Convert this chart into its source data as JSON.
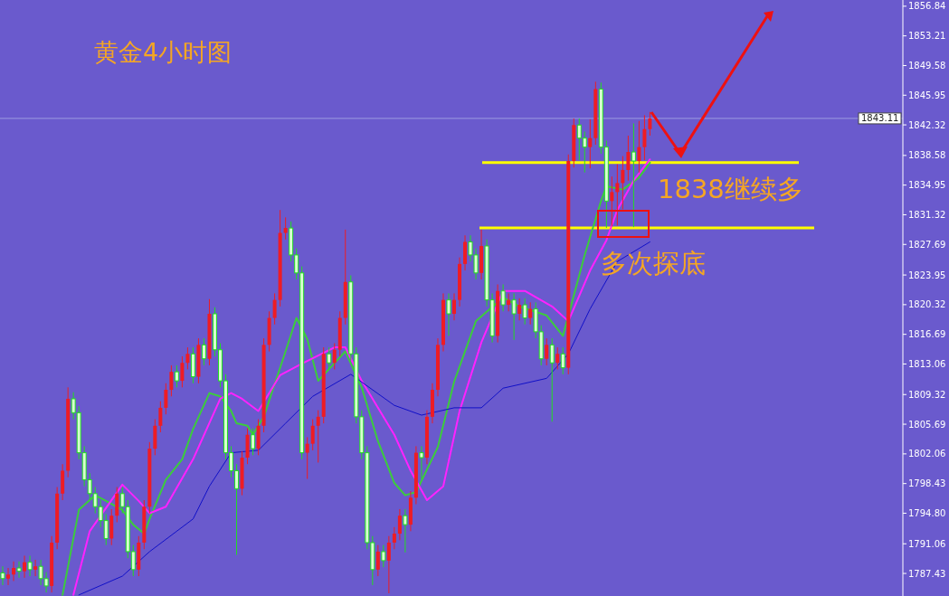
{
  "chart_data": {
    "type": "candlestick",
    "title": "黄金4小时图",
    "annotations": [
      "1838继续多",
      "多次探底"
    ],
    "categories": [
      null,
      null,
      null,
      null,
      null,
      null,
      null,
      null,
      null,
      null,
      null,
      null,
      null,
      null,
      null,
      null,
      null,
      null,
      null,
      null,
      null,
      null,
      null,
      null,
      null,
      null,
      null,
      null,
      null,
      null,
      null,
      null,
      null,
      null,
      null,
      null,
      null,
      null,
      null,
      null,
      null,
      null,
      null,
      null,
      null,
      null,
      null,
      null,
      null,
      null,
      null,
      null,
      null,
      null,
      null,
      null,
      null,
      null,
      null,
      null,
      null,
      null,
      null,
      null,
      null,
      null,
      null,
      null,
      null,
      null,
      null,
      null,
      null,
      null,
      null,
      null,
      null,
      null,
      null,
      null,
      null,
      null,
      null,
      null,
      null,
      null,
      null,
      null,
      null,
      null,
      null,
      null,
      null,
      null,
      null,
      null,
      null,
      null,
      null,
      null,
      null,
      null,
      null,
      null,
      null,
      null,
      null,
      null,
      null,
      null,
      null,
      null,
      null,
      null,
      null,
      null,
      null,
      null,
      null,
      null,
      null,
      null,
      null,
      null,
      null,
      null,
      null,
      null,
      null,
      null,
      null,
      null,
      null,
      null,
      null,
      null,
      null,
      null,
      null,
      null,
      null,
      null,
      null,
      null,
      null,
      null,
      null,
      null,
      null,
      null,
      null,
      null,
      null,
      null,
      null,
      null,
      null,
      null,
      null,
      null,
      null,
      null,
      null,
      null,
      null,
      null
    ],
    "ohlc": [
      [
        1787.5,
        1788.3,
        1786.0,
        1786.8
      ],
      [
        1786.8,
        1788.1,
        1786.0,
        1787.3
      ],
      [
        1787.3,
        1788.9,
        1786.5,
        1788.1
      ],
      [
        1788.1,
        1788.9,
        1786.9,
        1787.7
      ],
      [
        1787.7,
        1789.6,
        1786.9,
        1788.8
      ],
      [
        1788.8,
        1789.6,
        1787.1,
        1787.9
      ],
      [
        1787.9,
        1789.1,
        1787.1,
        1788.3
      ],
      [
        1788.3,
        1789.1,
        1786.0,
        1786.8
      ],
      [
        1786.8,
        1787.6,
        1785.1,
        1785.9
      ],
      [
        1785.9,
        1792.0,
        1785.1,
        1791.2
      ],
      [
        1791.2,
        1798.0,
        1790.4,
        1797.2
      ],
      [
        1797.2,
        1800.8,
        1796.4,
        1800.0
      ],
      [
        1800.0,
        1810.2,
        1799.2,
        1808.8
      ],
      [
        1808.8,
        1809.6,
        1806.3,
        1807.1
      ],
      [
        1807.1,
        1807.9,
        1801.4,
        1802.2
      ],
      [
        1802.2,
        1803.0,
        1798.1,
        1798.9
      ],
      [
        1798.9,
        1799.7,
        1796.4,
        1797.2
      ],
      [
        1797.2,
        1798.0,
        1794.8,
        1795.6
      ],
      [
        1795.6,
        1796.4,
        1793.1,
        1793.9
      ],
      [
        1793.9,
        1794.7,
        1790.9,
        1791.7
      ],
      [
        1791.7,
        1795.3,
        1790.9,
        1794.5
      ],
      [
        1794.5,
        1798.0,
        1793.7,
        1797.2
      ],
      [
        1797.2,
        1798.0,
        1794.8,
        1795.6
      ],
      [
        1795.6,
        1796.4,
        1789.3,
        1790.1
      ],
      [
        1790.1,
        1790.9,
        1787.1,
        1787.9
      ],
      [
        1787.9,
        1792.0,
        1787.1,
        1791.2
      ],
      [
        1791.2,
        1796.4,
        1790.4,
        1795.6
      ],
      [
        1795.6,
        1803.5,
        1794.8,
        1802.7
      ],
      [
        1802.7,
        1806.3,
        1801.9,
        1805.5
      ],
      [
        1805.5,
        1808.5,
        1804.7,
        1807.7
      ],
      [
        1807.7,
        1810.7,
        1806.9,
        1809.9
      ],
      [
        1809.9,
        1812.9,
        1809.1,
        1812.1
      ],
      [
        1812.1,
        1812.9,
        1810.2,
        1811.0
      ],
      [
        1811.0,
        1814.0,
        1810.2,
        1813.2
      ],
      [
        1813.2,
        1815.1,
        1812.4,
        1814.3
      ],
      [
        1814.3,
        1815.1,
        1810.7,
        1811.5
      ],
      [
        1811.5,
        1816.2,
        1810.7,
        1815.4
      ],
      [
        1815.4,
        1816.2,
        1812.9,
        1813.7
      ],
      [
        1813.7,
        1821.0,
        1812.9,
        1819.2
      ],
      [
        1819.2,
        1820.0,
        1814.0,
        1814.8
      ],
      [
        1814.8,
        1815.6,
        1810.2,
        1811.0
      ],
      [
        1811.0,
        1811.8,
        1801.4,
        1802.2
      ],
      [
        1802.2,
        1803.0,
        1799.2,
        1800.0
      ],
      [
        1800.0,
        1800.8,
        1789.7,
        1797.8
      ],
      [
        1797.8,
        1802.4,
        1797.0,
        1801.6
      ],
      [
        1801.6,
        1805.2,
        1800.8,
        1804.4
      ],
      [
        1804.4,
        1805.2,
        1801.9,
        1802.7
      ],
      [
        1802.7,
        1806.3,
        1801.9,
        1805.5
      ],
      [
        1805.5,
        1816.2,
        1804.7,
        1815.4
      ],
      [
        1815.4,
        1819.5,
        1814.6,
        1818.7
      ],
      [
        1818.7,
        1821.7,
        1817.9,
        1820.9
      ],
      [
        1820.9,
        1831.9,
        1820.1,
        1829.1
      ],
      [
        1829.1,
        1831.0,
        1828.3,
        1829.7
      ],
      [
        1829.7,
        1830.5,
        1825.6,
        1826.4
      ],
      [
        1826.4,
        1827.2,
        1823.4,
        1824.2
      ],
      [
        1824.2,
        1825.0,
        1801.4,
        1802.2
      ],
      [
        1802.2,
        1804.1,
        1799.0,
        1803.3
      ],
      [
        1803.3,
        1806.3,
        1802.5,
        1805.5
      ],
      [
        1805.5,
        1807.4,
        1801.0,
        1806.6
      ],
      [
        1806.6,
        1815.1,
        1805.8,
        1814.3
      ],
      [
        1814.3,
        1815.1,
        1812.4,
        1813.2
      ],
      [
        1813.2,
        1815.6,
        1812.4,
        1814.8
      ],
      [
        1814.8,
        1819.5,
        1814.0,
        1818.7
      ],
      [
        1818.7,
        1829.5,
        1817.9,
        1823.1
      ],
      [
        1823.1,
        1823.9,
        1813.5,
        1814.3
      ],
      [
        1814.3,
        1815.1,
        1805.8,
        1806.6
      ],
      [
        1806.6,
        1807.4,
        1801.4,
        1802.2
      ],
      [
        1802.2,
        1803.0,
        1790.4,
        1791.2
      ],
      [
        1791.2,
        1792.0,
        1786.0,
        1787.9
      ],
      [
        1787.9,
        1790.9,
        1787.1,
        1790.1
      ],
      [
        1790.1,
        1790.9,
        1788.2,
        1789.0
      ],
      [
        1789.0,
        1792.0,
        1785.0,
        1791.2
      ],
      [
        1791.2,
        1793.1,
        1790.4,
        1792.3
      ],
      [
        1792.3,
        1795.3,
        1791.5,
        1794.5
      ],
      [
        1794.5,
        1795.3,
        1790.0,
        1793.4
      ],
      [
        1793.4,
        1797.5,
        1792.6,
        1796.7
      ],
      [
        1796.7,
        1803.0,
        1795.9,
        1802.2
      ],
      [
        1802.2,
        1803.0,
        1799.0,
        1801.6
      ],
      [
        1801.6,
        1807.4,
        1800.8,
        1806.6
      ],
      [
        1806.6,
        1810.7,
        1805.8,
        1809.9
      ],
      [
        1809.9,
        1816.2,
        1809.1,
        1815.4
      ],
      [
        1815.4,
        1821.7,
        1814.6,
        1820.9
      ],
      [
        1820.9,
        1821.7,
        1816.5,
        1819.2
      ],
      [
        1819.2,
        1821.7,
        1818.4,
        1820.9
      ],
      [
        1820.9,
        1826.1,
        1820.1,
        1825.3
      ],
      [
        1825.3,
        1828.8,
        1824.5,
        1828.0
      ],
      [
        1828.0,
        1828.8,
        1825.6,
        1826.4
      ],
      [
        1826.4,
        1827.2,
        1823.4,
        1824.2
      ],
      [
        1824.2,
        1829.5,
        1823.4,
        1827.5
      ],
      [
        1827.5,
        1828.3,
        1820.1,
        1820.9
      ],
      [
        1820.9,
        1821.7,
        1815.7,
        1816.5
      ],
      [
        1816.5,
        1822.8,
        1815.7,
        1822.0
      ],
      [
        1822.0,
        1822.8,
        1819.5,
        1820.3
      ],
      [
        1820.3,
        1821.7,
        1819.5,
        1820.9
      ],
      [
        1820.9,
        1821.7,
        1816.0,
        1819.2
      ],
      [
        1819.2,
        1821.1,
        1818.4,
        1820.3
      ],
      [
        1820.3,
        1821.1,
        1817.9,
        1818.7
      ],
      [
        1818.7,
        1820.6,
        1817.9,
        1819.8
      ],
      [
        1819.8,
        1820.6,
        1816.2,
        1817.0
      ],
      [
        1817.0,
        1817.8,
        1812.9,
        1813.7
      ],
      [
        1813.7,
        1816.2,
        1812.9,
        1815.4
      ],
      [
        1815.4,
        1816.2,
        1806.0,
        1813.2
      ],
      [
        1813.2,
        1815.1,
        1812.4,
        1814.3
      ],
      [
        1814.3,
        1815.1,
        1811.8,
        1812.6
      ],
      [
        1812.6,
        1838.7,
        1811.8,
        1837.9
      ],
      [
        1837.9,
        1843.1,
        1837.1,
        1842.3
      ],
      [
        1842.3,
        1843.1,
        1838.0,
        1840.7
      ],
      [
        1840.7,
        1841.5,
        1836.5,
        1839.6
      ],
      [
        1839.6,
        1843.0,
        1837.0,
        1840.7
      ],
      [
        1840.7,
        1847.6,
        1839.9,
        1846.7
      ],
      [
        1846.7,
        1847.5,
        1838.8,
        1839.6
      ],
      [
        1839.6,
        1840.4,
        1829.7,
        1833.0
      ],
      [
        1833.0,
        1836.0,
        1829.9,
        1834.1
      ],
      [
        1834.1,
        1837.5,
        1830.0,
        1835.2
      ],
      [
        1835.2,
        1838.5,
        1832.0,
        1836.8
      ],
      [
        1836.8,
        1841.0,
        1835.5,
        1839.0
      ],
      [
        1839.0,
        1842.5,
        1829.8,
        1837.9
      ],
      [
        1837.9,
        1842.8,
        1836.5,
        1839.6
      ],
      [
        1839.6,
        1843.5,
        1838.0,
        1841.8
      ],
      [
        1841.8,
        1843.9,
        1841.0,
        1843.1
      ],
      null,
      null,
      null,
      null,
      null,
      null,
      null,
      null,
      null,
      null,
      null,
      null,
      null,
      null,
      null,
      null,
      null,
      null,
      null,
      null,
      null,
      null,
      null,
      null,
      null,
      null,
      null,
      null,
      null,
      null,
      null,
      null,
      null,
      null,
      null,
      null,
      null,
      null,
      null,
      null,
      null,
      null,
      null,
      null,
      null,
      null
    ],
    "series": [
      {
        "type": "line",
        "color": "#3ccc3c",
        "values": [
          null,
          null,
          null,
          null,
          null,
          null,
          null,
          null,
          null,
          null,
          null,
          1784.8,
          null,
          null,
          1795.2,
          null,
          null,
          1797.0,
          null,
          1796.3,
          null,
          null,
          1795.2,
          null,
          1793.4,
          null,
          1792.3,
          1794.1,
          null,
          null,
          1798.9,
          null,
          null,
          1801.4,
          null,
          1805.1,
          null,
          null,
          1809.5,
          null,
          1809.1,
          null,
          1807.3,
          1805.8,
          null,
          1805.5,
          1804.4,
          null,
          1806.6,
          null,
          null,
          null,
          1814.6,
          null,
          1818.7,
          null,
          1816.1,
          null,
          1811.0,
          null,
          null,
          null,
          null,
          1814.6,
          null,
          null,
          1810.2,
          null,
          null,
          1803.6,
          null,
          null,
          1798.5,
          null,
          1797.0,
          null,
          1797.4,
          null,
          null,
          null,
          1802.9,
          null,
          null,
          1810.9,
          null,
          null,
          null,
          1818.3,
          null,
          null,
          null,
          null,
          1821.2,
          null,
          null,
          1820.1,
          null,
          null,
          null,
          null,
          1819.0,
          null,
          null,
          1816.5,
          null,
          null,
          null,
          1826.4,
          null,
          null,
          1833.0,
          1834.8,
          null,
          null,
          1834.4,
          null,
          null,
          1835.9,
          null,
          1837.7,
          null,
          null,
          null,
          null,
          null,
          null,
          null,
          null,
          null,
          null,
          null,
          null,
          null,
          null,
          null,
          null,
          null,
          null,
          null,
          null,
          null,
          null,
          null,
          null,
          null,
          null,
          null,
          null,
          null,
          null,
          null,
          null,
          null,
          null,
          null,
          null,
          null,
          null,
          null,
          null,
          null,
          null,
          null,
          null,
          null,
          null
        ]
      },
      {
        "type": "line",
        "color": "#ff22ff",
        "values": [
          null,
          null,
          null,
          null,
          null,
          null,
          null,
          null,
          null,
          null,
          null,
          null,
          null,
          1784.8,
          null,
          null,
          1792.6,
          null,
          null,
          null,
          null,
          null,
          1798.3,
          null,
          null,
          1796.3,
          null,
          1794.8,
          null,
          null,
          1795.6,
          null,
          null,
          null,
          null,
          1801.4,
          null,
          null,
          null,
          null,
          1808.8,
          null,
          1809.5,
          null,
          1808.8,
          null,
          null,
          1807.3,
          null,
          null,
          null,
          1811.7,
          null,
          null,
          null,
          1813.1,
          null,
          null,
          null,
          null,
          null,
          1815.1,
          null,
          1815.1,
          null,
          null,
          1811.0,
          null,
          null,
          null,
          null,
          null,
          1804.4,
          null,
          null,
          1800.0,
          null,
          null,
          1796.4,
          null,
          null,
          1798.1,
          null,
          null,
          1807.3,
          null,
          null,
          null,
          1815.7,
          null,
          null,
          null,
          1822.0,
          null,
          null,
          null,
          1822.0,
          null,
          null,
          null,
          null,
          1820.1,
          null,
          null,
          1818.3,
          null,
          null,
          null,
          1824.5,
          null,
          null,
          1828.2,
          null,
          1831.9,
          null,
          null,
          1835.5,
          null,
          null,
          1838.1,
          null,
          null,
          null,
          null,
          null,
          null,
          null,
          null,
          null,
          null,
          null,
          null,
          null,
          null,
          null,
          null,
          null,
          null,
          null,
          null,
          null,
          null,
          null,
          null,
          null,
          null,
          null,
          null,
          null,
          null,
          null,
          null,
          null,
          null,
          null,
          null,
          null,
          null,
          null,
          null,
          null,
          null,
          null,
          null,
          null,
          null
        ]
      },
      {
        "type": "line",
        "color": "#1010c8",
        "values": [
          null,
          null,
          null,
          null,
          null,
          null,
          null,
          null,
          null,
          null,
          null,
          null,
          null,
          null,
          1784.8,
          null,
          null,
          null,
          null,
          null,
          null,
          null,
          1787.1,
          null,
          null,
          null,
          null,
          1790.1,
          null,
          null,
          null,
          null,
          null,
          null,
          null,
          1794.1,
          null,
          null,
          1798.1,
          null,
          null,
          null,
          1802.2,
          null,
          null,
          null,
          null,
          1802.5,
          null,
          null,
          null,
          null,
          1805.8,
          null,
          null,
          null,
          null,
          1809.1,
          null,
          null,
          null,
          null,
          null,
          null,
          1811.8,
          null,
          null,
          null,
          null,
          null,
          null,
          null,
          1808.0,
          null,
          null,
          null,
          null,
          1806.8,
          null,
          null,
          null,
          null,
          null,
          1807.7,
          null,
          null,
          null,
          null,
          1807.7,
          null,
          null,
          null,
          1810.1,
          null,
          null,
          null,
          null,
          null,
          null,
          null,
          1811.3,
          null,
          null,
          null,
          1814.3,
          null,
          null,
          null,
          1819.8,
          null,
          null,
          null,
          null,
          1825.6,
          null,
          null,
          null,
          null,
          null,
          1828.0,
          null,
          null,
          null,
          null,
          null,
          null,
          null,
          null,
          null,
          null,
          null,
          null,
          null,
          null,
          null,
          null,
          null,
          null,
          null,
          null,
          null,
          null,
          null,
          null,
          null,
          null,
          null,
          null,
          null,
          null,
          null,
          null,
          null,
          null,
          null,
          null,
          null,
          null,
          null,
          null,
          null,
          null,
          null,
          null,
          null,
          null
        ]
      }
    ],
    "ylim": [
      1784.67,
      1857.6
    ],
    "yticks": [
      1856.84,
      1853.21,
      1849.58,
      1845.95,
      1842.32,
      1838.58,
      1834.95,
      1831.32,
      1827.69,
      1823.95,
      1820.32,
      1816.69,
      1813.06,
      1809.32,
      1805.69,
      1802.06,
      1798.43,
      {
        "value": 1794.8,
        "label": "1794.80"
      },
      1791.06,
      1787.43
    ],
    "ref_lines": [
      {
        "axis": "y",
        "value": 1843.11,
        "label": "1843.11",
        "color": "#9c9ce0"
      },
      {
        "axis": "y",
        "value": 1837.7,
        "color": "#ffff00"
      },
      {
        "axis": "y",
        "value": 1829.7,
        "color": "#ffff00"
      }
    ],
    "tick_labels": "y"
  }
}
